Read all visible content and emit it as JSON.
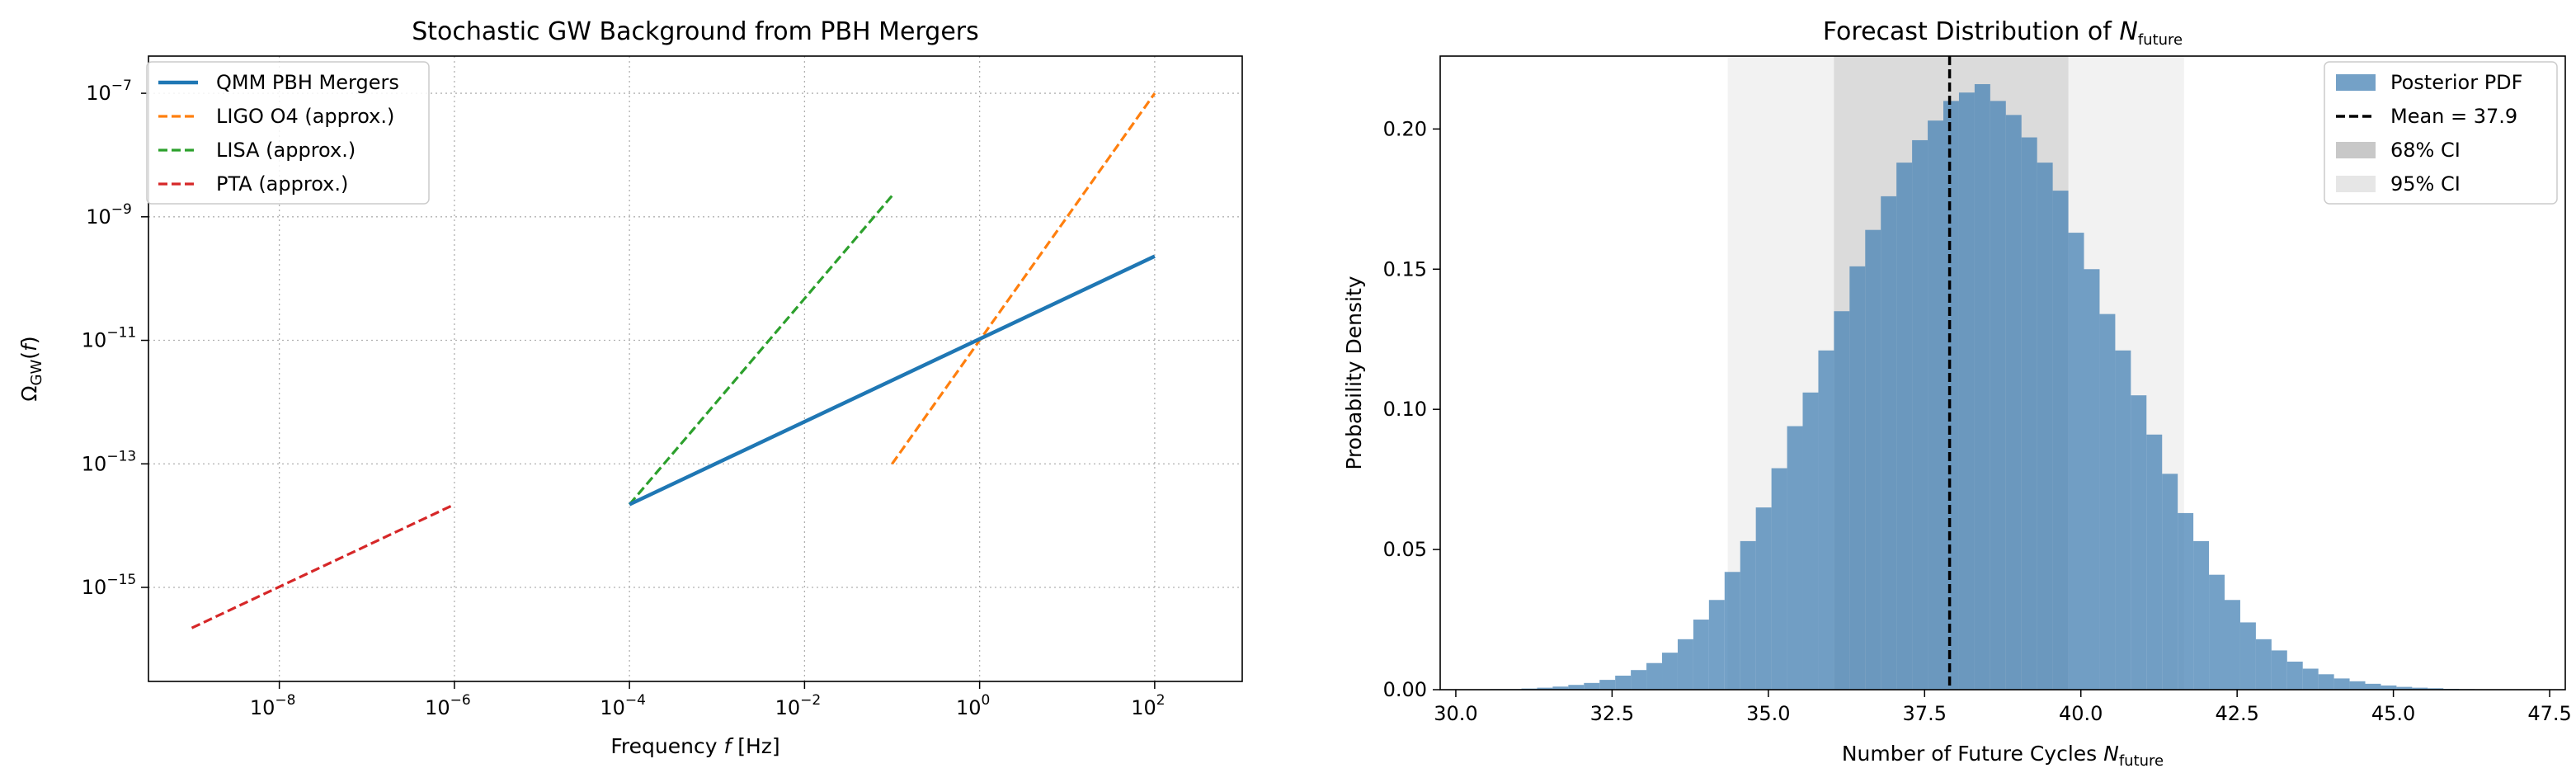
{
  "chart_data": [
    {
      "type": "line",
      "title": "Stochastic GW Background from PBH Mergers",
      "xlabel": "Frequency f [Hz]",
      "ylabel": "ΩGW(f)",
      "xscale": "log",
      "yscale": "log",
      "xlim": [
        3.2e-10,
        1000
      ],
      "ylim": [
        3e-17,
        4e-07
      ],
      "grid": true,
      "legend_position": "top-left",
      "xticks": [
        {
          "value": 1e-08,
          "base": "10",
          "exp": "−8"
        },
        {
          "value": 1e-06,
          "base": "10",
          "exp": "−6"
        },
        {
          "value": 0.0001,
          "base": "10",
          "exp": "−4"
        },
        {
          "value": 0.01,
          "base": "10",
          "exp": "−2"
        },
        {
          "value": 1,
          "base": "10",
          "exp": "0"
        },
        {
          "value": 100,
          "base": "10",
          "exp": "2"
        }
      ],
      "yticks": [
        {
          "value": 1e-15,
          "base": "10",
          "exp": "−15"
        },
        {
          "value": 1e-13,
          "base": "10",
          "exp": "−13"
        },
        {
          "value": 1e-11,
          "base": "10",
          "exp": "−11"
        },
        {
          "value": 1e-09,
          "base": "10",
          "exp": "−9"
        },
        {
          "value": 1e-07,
          "base": "10",
          "exp": "−7"
        }
      ],
      "series": [
        {
          "name": "QMM PBH Mergers",
          "color": "#1f77b4",
          "style": "solid",
          "x": [
            0.0001,
            100
          ],
          "y": [
            2.2e-14,
            2.3e-10
          ]
        },
        {
          "name": "LIGO O4 (approx.)",
          "color": "#ff7f0e",
          "style": "dashed",
          "x": [
            0.1,
            100
          ],
          "y": [
            1e-13,
            1e-07
          ]
        },
        {
          "name": "LISA (approx.)",
          "color": "#2ca02c",
          "style": "dashed",
          "x": [
            0.0001,
            0.1
          ],
          "y": [
            2.2e-14,
            2.2e-09
          ]
        },
        {
          "name": "PTA (approx.)",
          "color": "#d62728",
          "style": "dashed",
          "x": [
            1e-09,
            1e-06
          ],
          "y": [
            2.2e-16,
            2.2e-14
          ]
        }
      ]
    },
    {
      "type": "bar",
      "title": "Forecast Distribution of Nfuture",
      "xlabel": "Number of Future Cycles Nfuture",
      "ylabel": "Probability Density",
      "xlim": [
        29.75,
        47.75
      ],
      "ylim": [
        0,
        0.226
      ],
      "xticks": [
        "30.0",
        "32.5",
        "35.0",
        "37.5",
        "40.0",
        "42.5",
        "45.0",
        "47.5"
      ],
      "yticks": [
        "0.00",
        "0.05",
        "0.10",
        "0.15",
        "0.20"
      ],
      "legend_position": "top-right",
      "bin_start": 30.55,
      "bin_width": 0.25,
      "values": [
        0.0002,
        0.0002,
        0.0004,
        0.0007,
        0.0011,
        0.0017,
        0.0024,
        0.0035,
        0.005,
        0.007,
        0.0095,
        0.0132,
        0.018,
        0.025,
        0.032,
        0.042,
        0.053,
        0.065,
        0.079,
        0.094,
        0.106,
        0.121,
        0.135,
        0.151,
        0.164,
        0.176,
        0.188,
        0.196,
        0.203,
        0.21,
        0.213,
        0.216,
        0.21,
        0.205,
        0.197,
        0.188,
        0.178,
        0.163,
        0.15,
        0.134,
        0.121,
        0.105,
        0.091,
        0.077,
        0.063,
        0.053,
        0.041,
        0.032,
        0.024,
        0.018,
        0.014,
        0.01,
        0.0075,
        0.0055,
        0.004,
        0.003,
        0.0021,
        0.0015,
        0.001,
        0.0007,
        0.0005,
        0.0003,
        0.0002,
        0.0001,
        0.0001
      ],
      "mean": 37.9,
      "ci68": [
        36.05,
        39.8
      ],
      "ci95": [
        34.35,
        41.65
      ],
      "legend": [
        {
          "label": "Posterior PDF",
          "kind": "patch",
          "color": "#4682b4"
        },
        {
          "label": "Mean = 37.9",
          "kind": "line",
          "color": "#000000"
        },
        {
          "label": "68% CI",
          "kind": "patch",
          "color": "#c8c8c8"
        },
        {
          "label": "95% CI",
          "kind": "patch",
          "color": "#e6e6e6"
        }
      ]
    }
  ]
}
